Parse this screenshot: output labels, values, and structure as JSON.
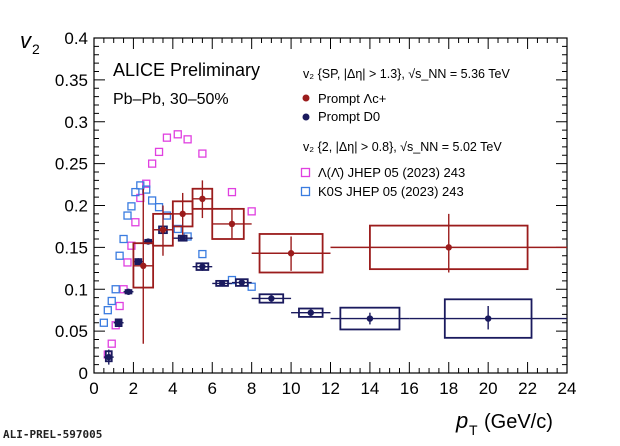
{
  "footer_id": "ALI-PREL-597005",
  "chart_data": {
    "type": "scatter",
    "ylabel_main": "v",
    "ylabel_sub": "2",
    "xlabel_main": "p",
    "xlabel_sub": "T",
    "xlabel_unit": "(GeV/c)",
    "xlim": [
      0,
      24
    ],
    "ylim": [
      0,
      0.4
    ],
    "xticks": [
      "0",
      "2",
      "4",
      "6",
      "8",
      "10",
      "12",
      "14",
      "16",
      "18",
      "20",
      "22",
      "24"
    ],
    "yticks": [
      "0",
      "0.05",
      "0.1",
      "0.15",
      "0.2",
      "0.25",
      "0.3",
      "0.35",
      "0.4"
    ],
    "colors": {
      "prompt_lambdac": "#9b1c1c",
      "prompt_d0": "#1a1a5e",
      "lambda_ref": "#e040e0",
      "k0s_ref": "#3a7ce0"
    },
    "annotations": {
      "experiment": "ALICE Preliminary",
      "system": "Pb–Pb, 30–50%",
      "method_sp": "v₂ {SP, |Δη| > 1.3}, √s_NN = 5.36 TeV",
      "method_2": "v₂ {2, |Δη| > 0.8}, √s_NN = 5.02 TeV"
    },
    "legend": {
      "lambdac": "Prompt Λc+",
      "d0": "Prompt D0",
      "lambda_ref": "Λ(Λ̄) JHEP 05 (2023) 243",
      "k0s_ref": "K0S JHEP 05 (2023) 243"
    },
    "series": [
      {
        "name": "Prompt Λc+",
        "key": "prompt_lambdac",
        "points": [
          {
            "x": 2.5,
            "y": 0.128,
            "xlo": 2.0,
            "xhi": 3.0,
            "ylo": 0.035,
            "yhi": 0.22,
            "syslo": 0.102,
            "syshi": 0.155
          },
          {
            "x": 3.5,
            "y": 0.171,
            "xlo": 3.0,
            "xhi": 4.0,
            "ylo": 0.14,
            "yhi": 0.2,
            "syslo": 0.152,
            "syshi": 0.19
          },
          {
            "x": 4.5,
            "y": 0.19,
            "xlo": 4.0,
            "xhi": 5.0,
            "ylo": 0.165,
            "yhi": 0.215,
            "syslo": 0.175,
            "syshi": 0.205
          },
          {
            "x": 5.5,
            "y": 0.208,
            "xlo": 5.0,
            "xhi": 6.0,
            "ylo": 0.185,
            "yhi": 0.23,
            "syslo": 0.196,
            "syshi": 0.22
          },
          {
            "x": 7.0,
            "y": 0.178,
            "xlo": 6.0,
            "xhi": 8.0,
            "ylo": 0.16,
            "yhi": 0.195,
            "syslo": 0.16,
            "syshi": 0.196
          },
          {
            "x": 10.0,
            "y": 0.143,
            "xlo": 8.0,
            "xhi": 12.0,
            "ylo": 0.122,
            "yhi": 0.163,
            "syslo": 0.12,
            "syshi": 0.166
          },
          {
            "x": 18.0,
            "y": 0.15,
            "xlo": 12.0,
            "xhi": 24.0,
            "ylo": 0.12,
            "yhi": 0.19,
            "syslo": 0.124,
            "syshi": 0.176
          }
        ],
        "sysboxes": [
          {
            "x0": 2.0,
            "x1": 3.0
          },
          {
            "x0": 3.0,
            "x1": 4.0
          },
          {
            "x0": 4.0,
            "x1": 5.0
          },
          {
            "x0": 5.0,
            "x1": 6.0
          },
          {
            "x0": 6.0,
            "x1": 7.6
          },
          {
            "x0": 8.4,
            "x1": 11.6
          },
          {
            "x0": 14.0,
            "x1": 22.0
          }
        ]
      },
      {
        "name": "Prompt D0",
        "key": "prompt_d0",
        "points": [
          {
            "x": 0.75,
            "y": 0.019,
            "xlo": 0.5,
            "xhi": 1.0,
            "ylo": 0.01,
            "yhi": 0.028,
            "syslo": 0.014,
            "syshi": 0.026
          },
          {
            "x": 1.25,
            "y": 0.06,
            "xlo": 1.0,
            "xhi": 1.5,
            "ylo": 0.055,
            "yhi": 0.065,
            "syslo": 0.056,
            "syshi": 0.064
          },
          {
            "x": 1.75,
            "y": 0.097,
            "xlo": 1.5,
            "xhi": 2.0,
            "ylo": 0.094,
            "yhi": 0.1,
            "syslo": 0.095,
            "syshi": 0.099
          },
          {
            "x": 2.25,
            "y": 0.133,
            "xlo": 2.0,
            "xhi": 2.5,
            "ylo": 0.129,
            "yhi": 0.137,
            "syslo": 0.13,
            "syshi": 0.136
          },
          {
            "x": 2.75,
            "y": 0.157,
            "xlo": 2.5,
            "xhi": 3.0,
            "ylo": 0.154,
            "yhi": 0.16,
            "syslo": 0.155,
            "syshi": 0.159
          },
          {
            "x": 3.5,
            "y": 0.171,
            "xlo": 3.0,
            "xhi": 4.0,
            "ylo": 0.166,
            "yhi": 0.176,
            "syslo": 0.167,
            "syshi": 0.175
          },
          {
            "x": 4.5,
            "y": 0.161,
            "xlo": 4.0,
            "xhi": 5.0,
            "ylo": 0.158,
            "yhi": 0.164,
            "syslo": 0.158,
            "syshi": 0.164
          },
          {
            "x": 5.5,
            "y": 0.127,
            "xlo": 5.0,
            "xhi": 6.0,
            "ylo": 0.122,
            "yhi": 0.132,
            "syslo": 0.123,
            "syshi": 0.131
          },
          {
            "x": 6.5,
            "y": 0.107,
            "xlo": 6.0,
            "xhi": 7.0,
            "ylo": 0.104,
            "yhi": 0.11,
            "syslo": 0.104,
            "syshi": 0.11
          },
          {
            "x": 7.5,
            "y": 0.108,
            "xlo": 7.0,
            "xhi": 8.0,
            "ylo": 0.104,
            "yhi": 0.112,
            "syslo": 0.104,
            "syshi": 0.112
          },
          {
            "x": 9.0,
            "y": 0.089,
            "xlo": 8.0,
            "xhi": 10.0,
            "ylo": 0.085,
            "yhi": 0.093,
            "syslo": 0.084,
            "syshi": 0.094
          },
          {
            "x": 11.0,
            "y": 0.072,
            "xlo": 10.0,
            "xhi": 12.0,
            "ylo": 0.068,
            "yhi": 0.076,
            "syslo": 0.067,
            "syshi": 0.077
          },
          {
            "x": 14.0,
            "y": 0.065,
            "xlo": 12.0,
            "xhi": 16.0,
            "ylo": 0.058,
            "yhi": 0.072,
            "syslo": 0.052,
            "syshi": 0.078
          },
          {
            "x": 20.0,
            "y": 0.065,
            "xlo": 16.0,
            "xhi": 24.0,
            "ylo": 0.052,
            "yhi": 0.08,
            "syslo": 0.042,
            "syshi": 0.088
          }
        ],
        "sysboxes": [
          {
            "x0": 0.6,
            "x1": 0.9
          },
          {
            "x0": 1.1,
            "x1": 1.4
          },
          {
            "x0": 1.6,
            "x1": 1.9
          },
          {
            "x0": 2.1,
            "x1": 2.4
          },
          {
            "x0": 2.6,
            "x1": 2.9
          },
          {
            "x0": 3.3,
            "x1": 3.7
          },
          {
            "x0": 4.3,
            "x1": 4.7
          },
          {
            "x0": 5.2,
            "x1": 5.8
          },
          {
            "x0": 6.2,
            "x1": 6.8
          },
          {
            "x0": 7.2,
            "x1": 7.8
          },
          {
            "x0": 8.4,
            "x1": 9.6
          },
          {
            "x0": 10.4,
            "x1": 11.6
          },
          {
            "x0": 12.5,
            "x1": 15.5
          },
          {
            "x0": 17.8,
            "x1": 22.2
          }
        ]
      },
      {
        "name": "Λ(Λ̄) JHEP 05 (2023) 243",
        "key": "lambda_ref",
        "points": [
          {
            "x": 0.7,
            "y": 0.022
          },
          {
            "x": 0.9,
            "y": 0.035
          },
          {
            "x": 1.1,
            "y": 0.057
          },
          {
            "x": 1.3,
            "y": 0.08
          },
          {
            "x": 1.5,
            "y": 0.1
          },
          {
            "x": 1.7,
            "y": 0.132
          },
          {
            "x": 1.9,
            "y": 0.152
          },
          {
            "x": 2.1,
            "y": 0.18
          },
          {
            "x": 2.35,
            "y": 0.209
          },
          {
            "x": 2.65,
            "y": 0.226
          },
          {
            "x": 2.95,
            "y": 0.25
          },
          {
            "x": 3.3,
            "y": 0.264
          },
          {
            "x": 3.7,
            "y": 0.281
          },
          {
            "x": 4.25,
            "y": 0.285
          },
          {
            "x": 4.75,
            "y": 0.279
          },
          {
            "x": 5.5,
            "y": 0.262
          },
          {
            "x": 7.0,
            "y": 0.216
          },
          {
            "x": 8.0,
            "y": 0.193
          }
        ]
      },
      {
        "name": "K0S JHEP 05 (2023) 243",
        "key": "k0s_ref",
        "points": [
          {
            "x": 0.5,
            "y": 0.06
          },
          {
            "x": 0.7,
            "y": 0.075
          },
          {
            "x": 0.9,
            "y": 0.086
          },
          {
            "x": 1.1,
            "y": 0.1
          },
          {
            "x": 1.3,
            "y": 0.14
          },
          {
            "x": 1.5,
            "y": 0.16
          },
          {
            "x": 1.7,
            "y": 0.188
          },
          {
            "x": 1.9,
            "y": 0.199
          },
          {
            "x": 2.1,
            "y": 0.216
          },
          {
            "x": 2.35,
            "y": 0.224
          },
          {
            "x": 2.65,
            "y": 0.219
          },
          {
            "x": 2.95,
            "y": 0.206
          },
          {
            "x": 3.3,
            "y": 0.198
          },
          {
            "x": 3.7,
            "y": 0.188
          },
          {
            "x": 4.25,
            "y": 0.172
          },
          {
            "x": 4.75,
            "y": 0.163
          },
          {
            "x": 5.5,
            "y": 0.142
          },
          {
            "x": 7.0,
            "y": 0.111
          },
          {
            "x": 8.0,
            "y": 0.103
          }
        ]
      }
    ]
  }
}
